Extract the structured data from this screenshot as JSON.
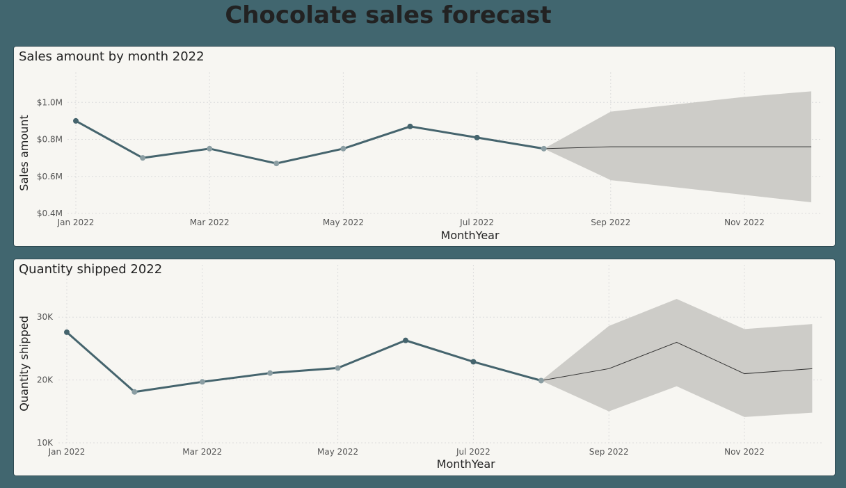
{
  "page_title": "Chocolate sales forecast",
  "colors": {
    "background": "#41666f",
    "panel": "#f7f6f2",
    "series_line": "#45646d",
    "marker_dark": "#45646d",
    "marker_light": "#8b9ea3",
    "forecast_line": "#333333",
    "forecast_band": "#cdccc8",
    "grid": "#dcdcdc"
  },
  "chart_data": [
    {
      "type": "line",
      "title": "Sales amount by month 2022",
      "xlabel": "MonthYear",
      "ylabel": "Sales amount",
      "x_tick_labels": [
        "Jan 2022",
        "Mar 2022",
        "May 2022",
        "Jul 2022",
        "Sep 2022",
        "Nov 2022"
      ],
      "y_tick_labels": [
        "$1.0M",
        "$0.8M",
        "$0.6M",
        "$0.4M"
      ],
      "y_ticks": [
        1.0,
        0.8,
        0.6,
        0.4
      ],
      "ylim": [
        0.4,
        1.05
      ],
      "y_unit": "$M",
      "x": [
        "Jan 2022",
        "Feb 2022",
        "Mar 2022",
        "Apr 2022",
        "May 2022",
        "Jun 2022",
        "Jul 2022",
        "Aug 2022"
      ],
      "values": [
        0.9,
        0.7,
        0.75,
        0.67,
        0.75,
        0.87,
        0.81,
        0.75
      ],
      "forecast": {
        "x": [
          "Aug 2022",
          "Sep 2022",
          "Oct 2022",
          "Nov 2022",
          "Dec 2022"
        ],
        "values": [
          0.75,
          0.76,
          0.76,
          0.76,
          0.76
        ],
        "upper": [
          0.75,
          0.95,
          0.99,
          1.03,
          1.06
        ],
        "lower": [
          0.75,
          0.58,
          0.54,
          0.5,
          0.46
        ]
      },
      "grid": true
    },
    {
      "type": "line",
      "title": "Quantity shipped 2022",
      "xlabel": "MonthYear",
      "ylabel": "Quantity shipped",
      "x_tick_labels": [
        "Jan 2022",
        "Mar 2022",
        "May 2022",
        "Jul 2022",
        "Sep 2022",
        "Nov 2022"
      ],
      "y_tick_labels": [
        "30K",
        "20K",
        "10K"
      ],
      "y_ticks": [
        30,
        20,
        10
      ],
      "ylim": [
        10,
        35
      ],
      "y_unit": "K",
      "x": [
        "Jan 2022",
        "Feb 2022",
        "Mar 2022",
        "Apr 2022",
        "May 2022",
        "Jun 2022",
        "Jul 2022",
        "Aug 2022"
      ],
      "values": [
        27.6,
        18.1,
        19.7,
        21.1,
        21.9,
        26.3,
        22.9,
        19.9
      ],
      "forecast": {
        "x": [
          "Aug 2022",
          "Sep 2022",
          "Oct 2022",
          "Nov 2022",
          "Dec 2022"
        ],
        "values": [
          19.9,
          21.8,
          26.0,
          21.0,
          21.8
        ],
        "upper": [
          19.9,
          28.6,
          32.9,
          28.1,
          28.9
        ],
        "lower": [
          19.9,
          15.0,
          19.0,
          14.1,
          14.8
        ]
      },
      "grid": true
    }
  ]
}
